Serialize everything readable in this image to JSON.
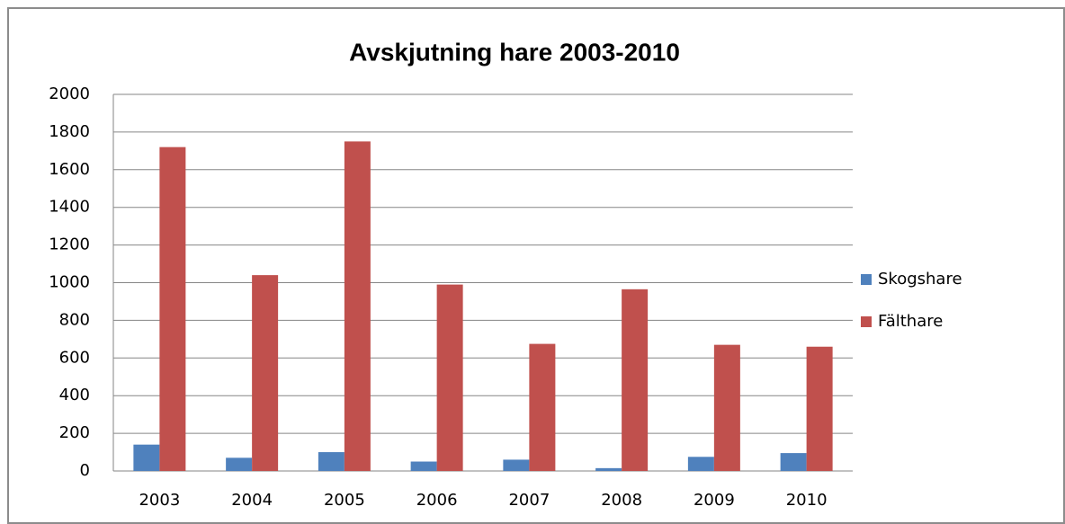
{
  "chart_data": {
    "type": "bar",
    "title": "Avskjutning hare 2003-2010",
    "categories": [
      "2003",
      "2004",
      "2005",
      "2006",
      "2007",
      "2008",
      "2009",
      "2010"
    ],
    "series": [
      {
        "name": "Skogshare",
        "color": "#4f81bd",
        "values": [
          140,
          70,
          100,
          50,
          60,
          15,
          75,
          95
        ]
      },
      {
        "name": "Fälthare",
        "color": "#c0504d",
        "values": [
          1720,
          1040,
          1750,
          990,
          675,
          965,
          670,
          660
        ]
      }
    ],
    "ylim": [
      0,
      2000
    ],
    "yticks": [
      0,
      200,
      400,
      600,
      800,
      1000,
      1200,
      1400,
      1600,
      1800,
      2000
    ],
    "grid": true,
    "legend": "right"
  }
}
